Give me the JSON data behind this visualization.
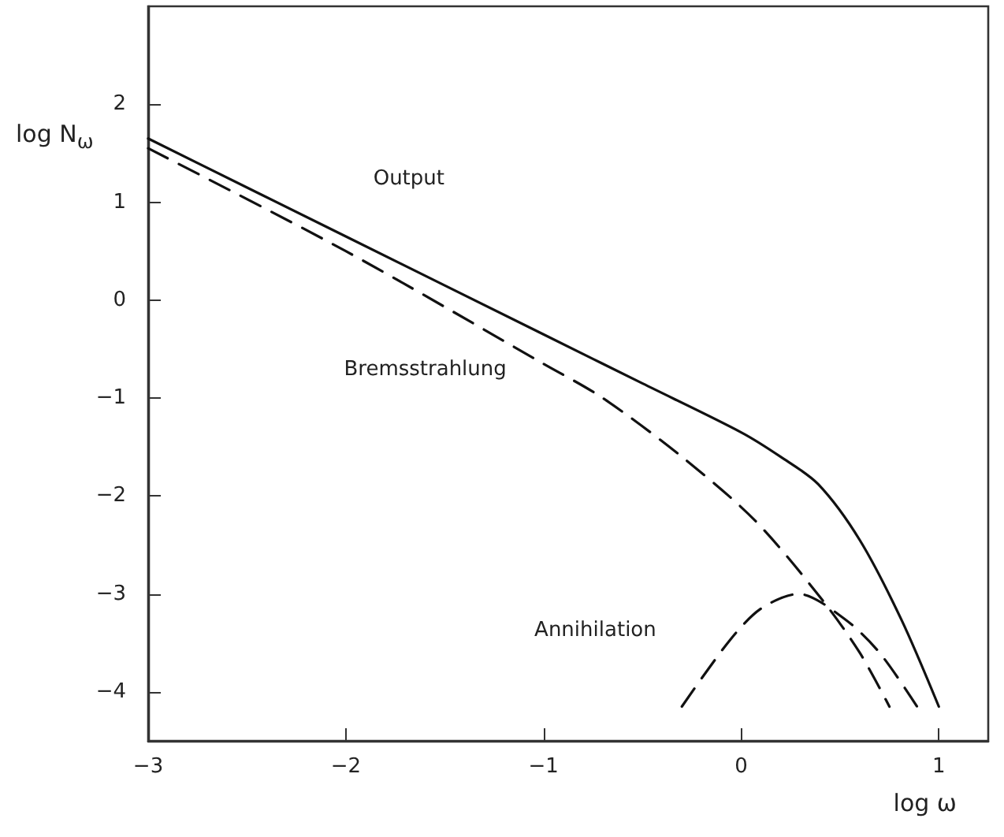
{
  "chart_data": {
    "type": "line",
    "xlabel": "log ω",
    "ylabel": "log N$_{ω}$",
    "xlim": [
      -3,
      1.25
    ],
    "xticks": [
      -3,
      -2,
      -1,
      0,
      1
    ],
    "ylim": [
      -4.5,
      3
    ],
    "yticks": [
      -4,
      -3,
      -2,
      -1,
      0,
      1,
      2
    ],
    "grid": false,
    "legend": false,
    "marker": "none",
    "series": [
      {
        "name": "Output",
        "color": "#111111",
        "line_style": "solid",
        "x": [
          -3,
          -2,
          -1,
          -0.5,
          0,
          0.2,
          0.39,
          0.6,
          0.81,
          1.0
        ],
        "values": [
          1.65,
          0.65,
          -0.35,
          -0.85,
          -1.35,
          -1.6,
          -1.88,
          -2.45,
          -3.26,
          -4.15
        ]
      },
      {
        "name": "Bremsstrahlung",
        "color": "#111111",
        "line_style": "dashed",
        "x": [
          -3,
          -2,
          -1,
          -0.7,
          -0.3,
          0.07,
          0.41,
          0.6,
          0.75
        ],
        "values": [
          1.55,
          0.5,
          -0.65,
          -1.0,
          -1.6,
          -2.25,
          -3.06,
          -3.6,
          -4.15
        ]
      },
      {
        "name": "Annihilation",
        "color": "#111111",
        "line_style": "dashed",
        "x": [
          -0.3,
          -0.06,
          0.1,
          0.29,
          0.52,
          0.7,
          0.89
        ],
        "values": [
          -4.15,
          -3.48,
          -3.15,
          -3.0,
          -3.25,
          -3.6,
          -4.15
        ]
      }
    ]
  }
}
